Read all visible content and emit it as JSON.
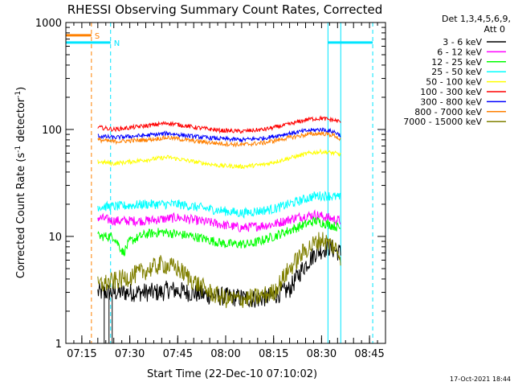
{
  "chart_data": {
    "type": "line",
    "title": "RHESSI Observing Summary Count Rates, Corrected",
    "xlabel": "Start Time (22-Dec-10 07:10:02)",
    "ylabel_parts": [
      "Corrected Count Rate (s",
      "-1",
      " detector",
      "-1",
      ")"
    ],
    "y_scale": "log",
    "ylim": [
      1,
      1000
    ],
    "xlim_minutes": [
      0,
      100
    ],
    "x_ticks": [
      {
        "minute": 5,
        "label": "07:15"
      },
      {
        "minute": 20,
        "label": "07:30"
      },
      {
        "minute": 35,
        "label": "07:45"
      },
      {
        "minute": 50,
        "label": "08:00"
      },
      {
        "minute": 65,
        "label": "08:15"
      },
      {
        "minute": 80,
        "label": "08:30"
      },
      {
        "minute": 95,
        "label": "08:45"
      }
    ],
    "y_ticks": [
      {
        "value": 1,
        "label": "1"
      },
      {
        "value": 10,
        "label": "10"
      },
      {
        "value": 100,
        "label": "100"
      },
      {
        "value": 1000,
        "label": "1000"
      }
    ],
    "legend_header": [
      "Det 1,3,4,5,6,9,",
      "Att 0"
    ],
    "flags": [
      {
        "label": "S",
        "color": "#ff8000",
        "start": -3,
        "end": 8,
        "y": 760
      },
      {
        "label": "N",
        "color": "#00e5ff",
        "start": -3,
        "end": 14,
        "y": 650
      },
      {
        "label": "",
        "color": "#00e5ff",
        "start": 82,
        "end": 96,
        "y": 650
      }
    ],
    "vlines": [
      {
        "minute": 0,
        "color": "#00e5ff",
        "dashed": false
      },
      {
        "minute": 8,
        "color": "#ff8000",
        "dashed": true
      },
      {
        "minute": 14,
        "color": "#00e5ff",
        "dashed": true
      },
      {
        "minute": 82,
        "color": "#00e5ff",
        "dashed": false
      },
      {
        "minute": 86,
        "color": "#00e5ff",
        "dashed": false
      },
      {
        "minute": 96,
        "color": "#00e5ff",
        "dashed": true
      }
    ],
    "series": [
      {
        "name": "3 - 6 keV",
        "color": "#000000",
        "x": [
          10,
          20,
          30,
          32,
          45,
          60,
          65,
          70,
          74,
          78,
          82,
          84,
          86
        ],
        "values": [
          3.0,
          3.0,
          3.0,
          3.2,
          2.8,
          2.6,
          2.8,
          3.2,
          5.0,
          7.0,
          8.0,
          7.5,
          7.0
        ]
      },
      {
        "name": "6 - 12 keV",
        "color": "#ff00ff",
        "x": [
          10,
          15,
          25,
          35,
          45,
          55,
          65,
          72,
          78,
          82,
          86
        ],
        "values": [
          15,
          14,
          14,
          15,
          13.5,
          12,
          13,
          15,
          16,
          15,
          14
        ]
      },
      {
        "name": "12 - 25 keV",
        "color": "#00ff00",
        "x": [
          10,
          15,
          18,
          20,
          25,
          30,
          40,
          50,
          58,
          65,
          72,
          78,
          82,
          86
        ],
        "values": [
          10,
          10,
          7,
          9,
          10.5,
          11,
          10,
          8.5,
          8.5,
          10,
          12,
          14,
          13,
          12
        ]
      },
      {
        "name": "25 - 50 keV",
        "color": "#00ffff",
        "x": [
          10,
          15,
          25,
          35,
          45,
          55,
          65,
          72,
          78,
          82,
          86
        ],
        "values": [
          19,
          19,
          20,
          20,
          18,
          16.5,
          18,
          21,
          24,
          24,
          23
        ]
      },
      {
        "name": "50 - 100 keV",
        "color": "#ffff00",
        "x": [
          10,
          15,
          25,
          32,
          40,
          48,
          55,
          62,
          70,
          76,
          80,
          84,
          86
        ],
        "values": [
          50,
          48,
          52,
          55,
          50,
          46,
          45,
          47,
          54,
          60,
          62,
          60,
          58
        ]
      },
      {
        "name": "100 - 300 keV",
        "color": "#ff0000",
        "x": [
          10,
          15,
          25,
          32,
          40,
          48,
          55,
          62,
          70,
          76,
          80,
          84,
          86
        ],
        "values": [
          105,
          100,
          108,
          115,
          105,
          98,
          96,
          100,
          112,
          125,
          127,
          122,
          118
        ]
      },
      {
        "name": "300 - 800 keV",
        "color": "#0000ff",
        "x": [
          10,
          15,
          25,
          32,
          40,
          48,
          55,
          62,
          70,
          76,
          80,
          84,
          86
        ],
        "values": [
          87,
          84,
          88,
          92,
          86,
          82,
          80,
          83,
          92,
          98,
          100,
          95,
          88
        ]
      },
      {
        "name": "800 - 7000 keV",
        "color": "#ff8000",
        "x": [
          10,
          15,
          25,
          32,
          40,
          48,
          55,
          62,
          70,
          76,
          80,
          84,
          86
        ],
        "values": [
          80,
          77,
          80,
          84,
          78,
          74,
          72,
          75,
          84,
          90,
          92,
          88,
          80
        ]
      },
      {
        "name": "7000 - 15000 keV",
        "color": "#808000",
        "x": [
          10,
          15,
          20,
          25,
          30,
          35,
          40,
          45,
          50,
          55,
          60,
          65,
          70,
          75,
          80,
          84,
          86
        ],
        "values": [
          3.5,
          3.8,
          4.2,
          4.8,
          5.5,
          5.0,
          3.8,
          3.0,
          2.6,
          2.6,
          2.7,
          3.0,
          5.0,
          7.5,
          9.5,
          8.0,
          6.5
        ]
      }
    ],
    "timestamp": "17-Oct-2021 18:44"
  }
}
